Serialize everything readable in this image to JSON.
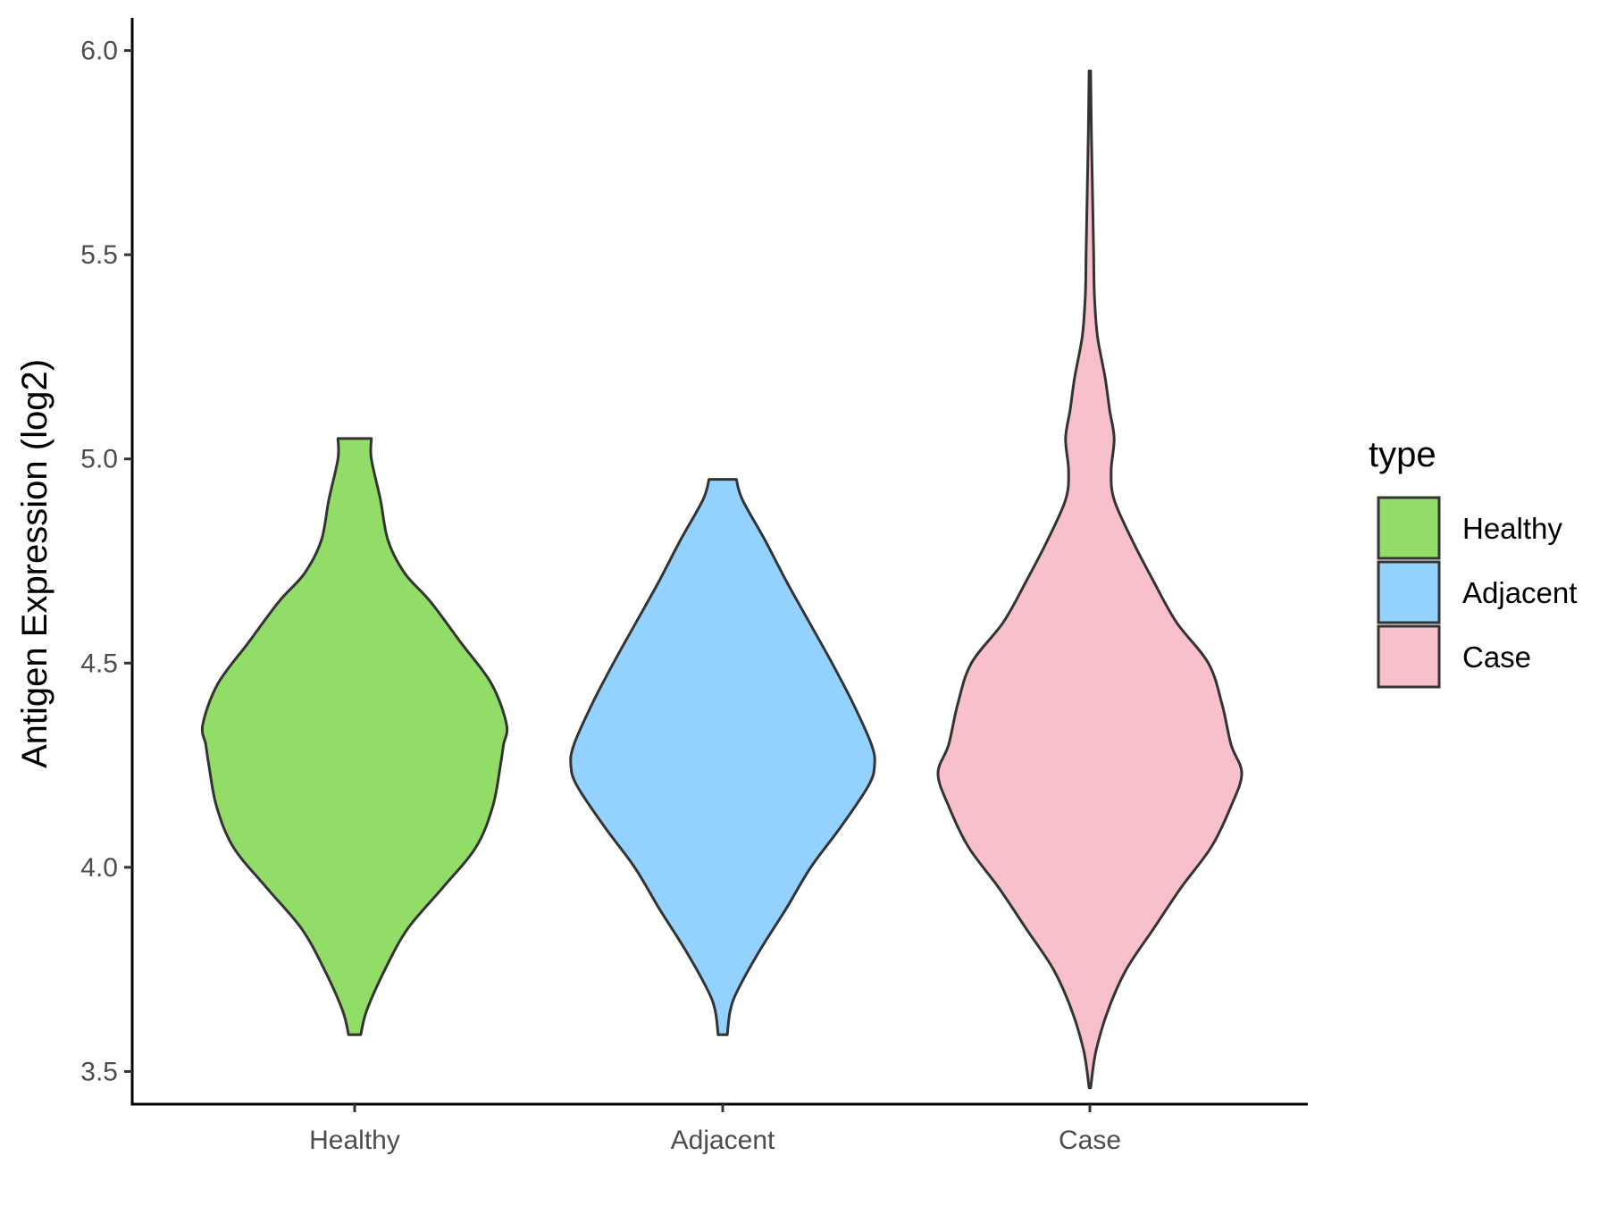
{
  "chart_data": {
    "type": "violin",
    "title": "",
    "xlabel": "",
    "ylabel": "Antigen Expression (log2)",
    "categories": [
      "Healthy",
      "Adjacent",
      "Case"
    ],
    "ylim": [
      3.42,
      6.08
    ],
    "yticks": [
      3.5,
      4.0,
      4.5,
      5.0,
      5.5,
      6.0
    ],
    "ytick_labels": [
      "3.5",
      "4.0",
      "4.5",
      "5.0",
      "5.5",
      "6.0"
    ],
    "grid": false,
    "legend": {
      "title": "type",
      "position": "right",
      "entries": [
        {
          "label": "Healthy",
          "color": "#92dd68"
        },
        {
          "label": "Adjacent",
          "color": "#93d2fe"
        },
        {
          "label": "Case",
          "color": "#f7c0cb"
        }
      ]
    },
    "outline_color": "#333333",
    "series": [
      {
        "name": "Healthy",
        "color": "#92dd68",
        "min": 3.59,
        "max": 5.05,
        "density": [
          [
            3.59,
            0.04
          ],
          [
            3.65,
            0.08
          ],
          [
            3.75,
            0.2
          ],
          [
            3.85,
            0.35
          ],
          [
            3.95,
            0.58
          ],
          [
            4.05,
            0.8
          ],
          [
            4.15,
            0.91
          ],
          [
            4.25,
            0.96
          ],
          [
            4.3,
            0.98
          ],
          [
            4.35,
            1.0
          ],
          [
            4.45,
            0.9
          ],
          [
            4.55,
            0.7
          ],
          [
            4.65,
            0.5
          ],
          [
            4.72,
            0.33
          ],
          [
            4.8,
            0.22
          ],
          [
            4.9,
            0.17
          ],
          [
            5.0,
            0.11
          ],
          [
            5.05,
            0.11
          ]
        ]
      },
      {
        "name": "Adjacent",
        "color": "#93d2fe",
        "min": 3.59,
        "max": 4.95,
        "density": [
          [
            3.59,
            0.03
          ],
          [
            3.65,
            0.05
          ],
          [
            3.7,
            0.1
          ],
          [
            3.8,
            0.25
          ],
          [
            3.9,
            0.42
          ],
          [
            4.0,
            0.58
          ],
          [
            4.1,
            0.78
          ],
          [
            4.2,
            0.96
          ],
          [
            4.25,
            1.0
          ],
          [
            4.3,
            0.98
          ],
          [
            4.4,
            0.86
          ],
          [
            4.5,
            0.72
          ],
          [
            4.6,
            0.57
          ],
          [
            4.7,
            0.42
          ],
          [
            4.8,
            0.28
          ],
          [
            4.9,
            0.13
          ],
          [
            4.95,
            0.09
          ]
        ]
      },
      {
        "name": "Case",
        "color": "#f7c0cb",
        "min": 3.46,
        "max": 5.95,
        "density": [
          [
            3.46,
            0.005
          ],
          [
            3.55,
            0.04
          ],
          [
            3.65,
            0.12
          ],
          [
            3.75,
            0.24
          ],
          [
            3.85,
            0.42
          ],
          [
            3.95,
            0.6
          ],
          [
            4.05,
            0.8
          ],
          [
            4.15,
            0.93
          ],
          [
            4.23,
            1.0
          ],
          [
            4.3,
            0.93
          ],
          [
            4.4,
            0.87
          ],
          [
            4.5,
            0.78
          ],
          [
            4.6,
            0.57
          ],
          [
            4.7,
            0.42
          ],
          [
            4.8,
            0.28
          ],
          [
            4.9,
            0.16
          ],
          [
            4.97,
            0.14
          ],
          [
            5.05,
            0.16
          ],
          [
            5.12,
            0.13
          ],
          [
            5.2,
            0.1
          ],
          [
            5.3,
            0.05
          ],
          [
            5.4,
            0.03
          ],
          [
            5.5,
            0.025
          ],
          [
            5.6,
            0.02
          ],
          [
            5.7,
            0.015
          ],
          [
            5.8,
            0.01
          ],
          [
            5.95,
            0.005
          ]
        ]
      }
    ]
  }
}
